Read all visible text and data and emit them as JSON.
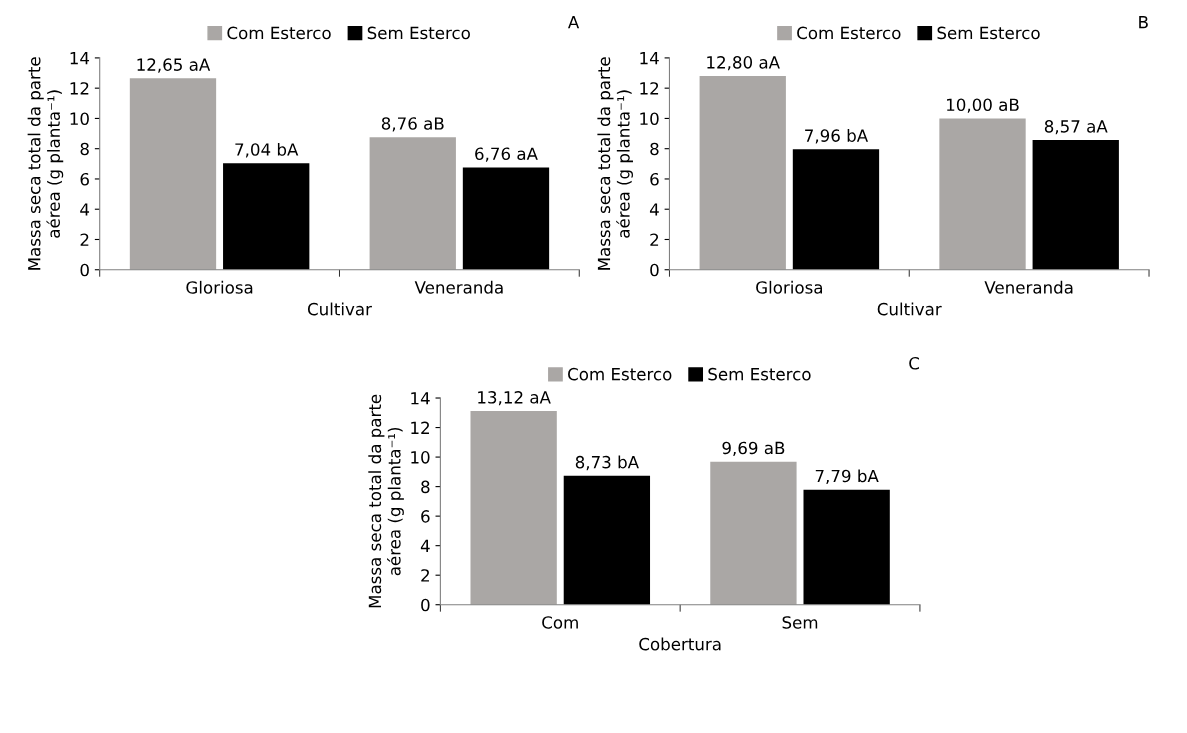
{
  "chart_data": [
    {
      "type": "bar",
      "xlabel": "Cultivar",
      "ylabel": "Massa seca total da parte\naérea (g planta⁻¹)",
      "categories": [
        "Gloriosa",
        "Veneranda"
      ],
      "ylim": [
        0,
        14
      ],
      "yticks": [
        0,
        2,
        4,
        6,
        8,
        10,
        12,
        14
      ],
      "legend": "top",
      "annotations": [
        "A"
      ],
      "series": [
        {
          "name": "Com Esterco",
          "color": "#aaa7a5",
          "values": [
            12.65,
            8.76
          ],
          "value_labels": [
            "12,65 aA",
            "8,76 aB"
          ]
        },
        {
          "name": "Sem Esterco",
          "color": "#000000",
          "values": [
            7.04,
            6.76
          ],
          "value_labels": [
            "7,04 bA",
            "6,76 aA"
          ]
        }
      ]
    },
    {
      "type": "bar",
      "xlabel": "Cultivar",
      "ylabel": "Massa seca total da parte\naérea (g planta⁻¹)",
      "categories": [
        "Gloriosa",
        "Veneranda"
      ],
      "ylim": [
        0,
        14
      ],
      "yticks": [
        0,
        2,
        4,
        6,
        8,
        10,
        12,
        14
      ],
      "legend": "top",
      "annotations": [
        "B"
      ],
      "series": [
        {
          "name": "Com Esterco",
          "color": "#aaa7a5",
          "values": [
            12.8,
            10.0
          ],
          "value_labels": [
            "12,80 aA",
            "10,00 aB"
          ]
        },
        {
          "name": "Sem Esterco",
          "color": "#000000",
          "values": [
            7.96,
            8.57
          ],
          "value_labels": [
            "7,96 bA",
            "8,57 aA"
          ]
        }
      ]
    },
    {
      "type": "bar",
      "xlabel": "Cobertura",
      "ylabel": "Massa seca total da parte\naérea (g planta⁻¹)",
      "categories": [
        "Com",
        "Sem"
      ],
      "ylim": [
        0,
        14
      ],
      "yticks": [
        0,
        2,
        4,
        6,
        8,
        10,
        12,
        14
      ],
      "legend": "top",
      "annotations": [
        "C"
      ],
      "series": [
        {
          "name": "Com Esterco",
          "color": "#aaa7a5",
          "values": [
            13.12,
            9.69
          ],
          "value_labels": [
            "13,12 aA",
            "9,69 aB"
          ]
        },
        {
          "name": "Sem Esterco",
          "color": "#000000",
          "values": [
            8.73,
            7.79
          ],
          "value_labels": [
            "8,73 bA",
            "7,79 bA"
          ]
        }
      ]
    }
  ]
}
